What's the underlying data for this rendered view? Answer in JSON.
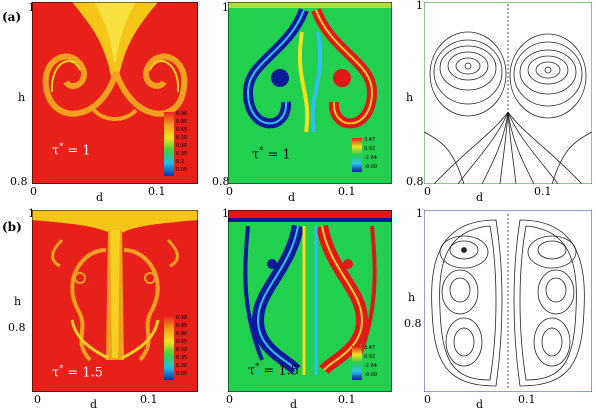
{
  "row_labels": [
    "(a)",
    "(b)"
  ],
  "axis": {
    "ylabel": "h",
    "xlabel": "d",
    "top_tick": "1",
    "mid_tick": "0.8",
    "bottom_tick": "0.8",
    "x_tick_0": "0",
    "x_tick_1": "0.1"
  },
  "rows": [
    {
      "tau_text": "τ",
      "tau_sup": "*",
      "tau_value": " = 1",
      "conc_legend": [
        "0.98",
        "0.80",
        "0.65",
        "0.50",
        "0.40",
        "0.35",
        "0.2",
        "0.05"
      ],
      "vort_legend": [
        "3.47",
        "0.92",
        "-2.64",
        "-0.00"
      ]
    },
    {
      "tau_text": "τ",
      "tau_sup": "*",
      "tau_value": " = 1.5",
      "conc_legend": [
        "0.98",
        "0.85",
        "0.80",
        "0.65",
        "0.50",
        "0.35",
        "0.20",
        "0.05"
      ],
      "vort_legend": [
        "3.47",
        "0.92",
        "-2.64",
        "-0.00"
      ]
    }
  ],
  "colors": {
    "conc_bg": "#e8201a",
    "conc_mid": "#f2a020",
    "conc_light": "#f5d020",
    "vort_bg": "#22d050",
    "vort_blue": "#0a1a9a",
    "vort_red": "#e01818",
    "frame_a": "#2a8a2a",
    "frame_b": "#2a3aaa"
  }
}
